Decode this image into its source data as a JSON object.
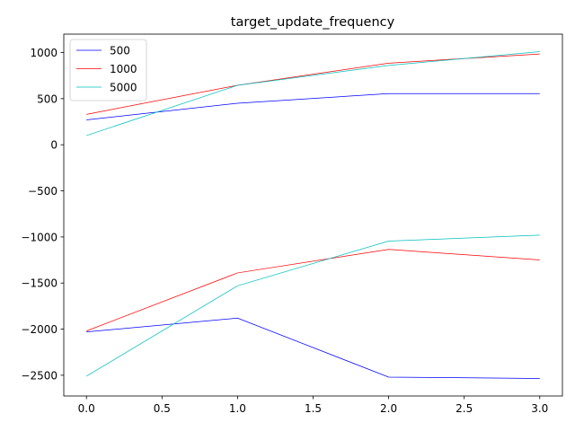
{
  "chart_data": {
    "type": "line",
    "title": "target_update_frequency",
    "xlabel": "",
    "ylabel": "",
    "x": [
      0.0,
      1.0,
      2.0,
      3.0
    ],
    "xlim": [
      -0.15,
      3.15
    ],
    "ylim": [
      -2725,
      1200
    ],
    "xticks": [
      0.0,
      0.5,
      1.0,
      1.5,
      2.0,
      2.5,
      3.0
    ],
    "xtick_labels": [
      "0.0",
      "0.5",
      "1.0",
      "1.5",
      "2.0",
      "2.5",
      "3.0"
    ],
    "yticks": [
      1000,
      500,
      0,
      -500,
      -1000,
      -1500,
      -2000,
      -2500
    ],
    "ytick_labels": [
      "1000",
      "500",
      "0",
      "−500",
      "−1000",
      "−1500",
      "−2000",
      "−2500"
    ],
    "grid": false,
    "legend_position": "top-left",
    "series": [
      {
        "name": "500",
        "color": "#0000ff",
        "values": [
          270,
          450,
          555,
          555
        ]
      },
      {
        "name": "1000",
        "color": "#ff0000",
        "values": [
          330,
          645,
          885,
          985
        ]
      },
      {
        "name": "5000",
        "color": "#00bfbf",
        "values": [
          100,
          645,
          860,
          1010
        ]
      },
      {
        "name": "500",
        "color": "#0000ff",
        "values": [
          -2030,
          -1880,
          -2520,
          -2535
        ]
      },
      {
        "name": "1000",
        "color": "#ff0000",
        "values": [
          -2020,
          -1390,
          -1135,
          -1250
        ]
      },
      {
        "name": "5000",
        "color": "#00bfbf",
        "values": [
          -2510,
          -1530,
          -1045,
          -980
        ]
      }
    ],
    "legend": [
      {
        "label": "500",
        "color": "#0000ff"
      },
      {
        "label": "1000",
        "color": "#ff0000"
      },
      {
        "label": "5000",
        "color": "#00bfbf"
      }
    ]
  }
}
